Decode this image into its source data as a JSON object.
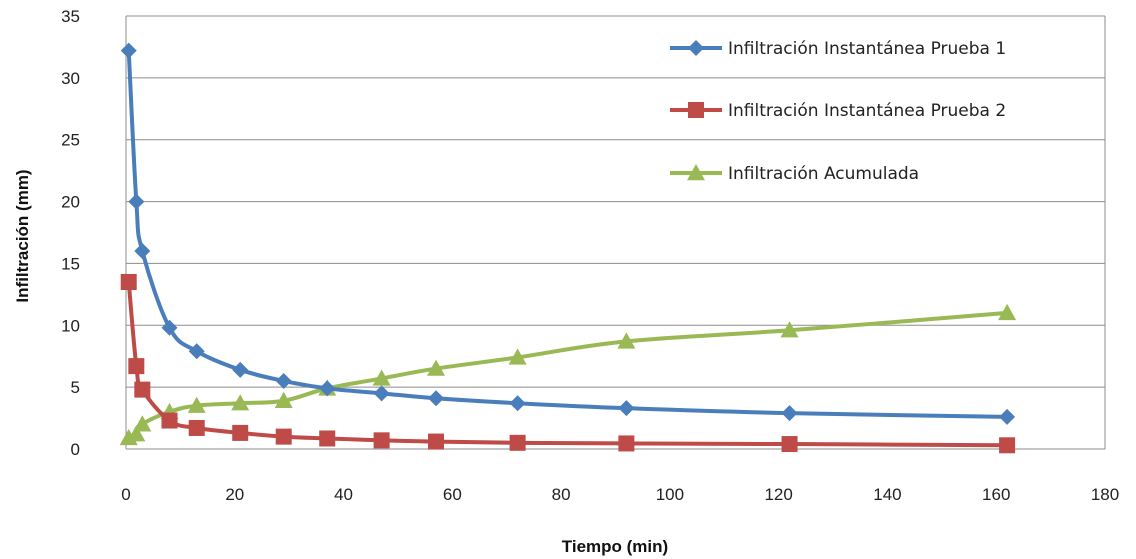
{
  "chart_data": {
    "type": "line",
    "title": "",
    "xlabel": "Tiempo (min)",
    "ylabel": "Infiltración (mm)",
    "xlim": [
      0,
      180
    ],
    "ylim": [
      0,
      35
    ],
    "x_ticks": [
      "0",
      "20",
      "40",
      "60",
      "80",
      "100",
      "120",
      "140",
      "160",
      "180"
    ],
    "y_ticks": [
      "0",
      "5",
      "10",
      "15",
      "20",
      "25",
      "30",
      "35"
    ],
    "grid": "horizontal",
    "legend_position": "top-right",
    "series": [
      {
        "name": "Infiltración Instantánea Prueba 1",
        "color": "#4a7ebb",
        "marker": "diamond",
        "x": [
          0.5,
          1.9,
          3,
          8,
          13,
          21,
          29,
          37,
          47,
          57,
          72,
          92,
          122,
          162
        ],
        "y": [
          32.2,
          20,
          16,
          9.8,
          7.9,
          6.4,
          5.5,
          4.9,
          4.5,
          4.1,
          3.7,
          3.3,
          2.9,
          2.6
        ]
      },
      {
        "name": "Infiltración Instantánea Prueba 2",
        "color": "#be4b48",
        "marker": "square",
        "x": [
          0.5,
          1.9,
          3,
          8,
          13,
          21,
          29,
          37,
          47,
          57,
          72,
          92,
          122,
          162
        ],
        "y": [
          13.5,
          6.7,
          4.8,
          2.3,
          1.7,
          1.3,
          1.0,
          0.85,
          0.7,
          0.6,
          0.5,
          0.45,
          0.4,
          0.3
        ]
      },
      {
        "name": "Infiltración Acumulada",
        "color": "#98b954",
        "marker": "triangle",
        "x": [
          0.5,
          1.9,
          3,
          8,
          13,
          21,
          29,
          37,
          47,
          57,
          72,
          92,
          122,
          162
        ],
        "y": [
          0.9,
          1.2,
          2.0,
          3.0,
          3.5,
          3.7,
          3.9,
          4.9,
          5.7,
          6.5,
          7.4,
          8.7,
          9.6,
          11.0
        ]
      }
    ]
  }
}
